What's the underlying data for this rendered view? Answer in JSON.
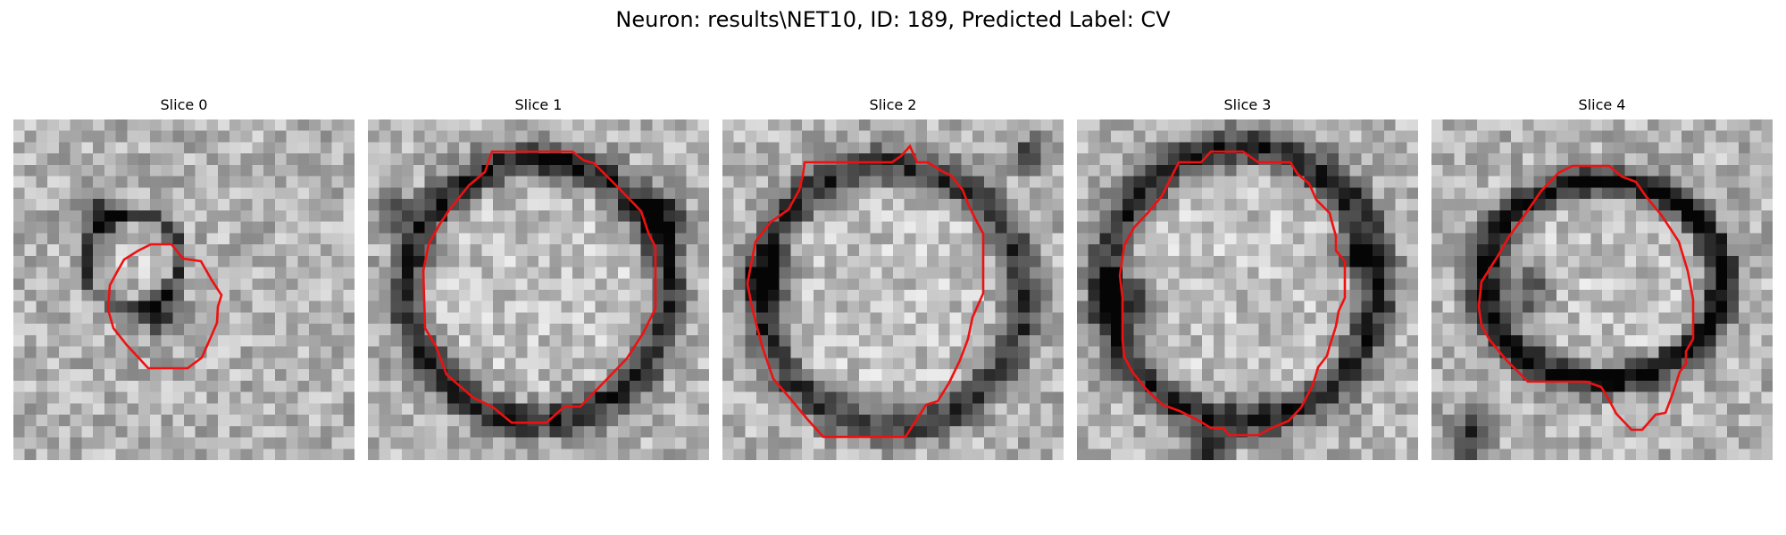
{
  "figure": {
    "suptitle": "Neuron: results\\NET10, ID: 189, Predicted Label: CV",
    "contour_color": "#ee1111",
    "colormap": "gray"
  },
  "panels": [
    {
      "title": "Slice 0",
      "contour_icon": "roi-contour"
    },
    {
      "title": "Slice 1",
      "contour_icon": "roi-contour"
    },
    {
      "title": "Slice 2",
      "contour_icon": "roi-contour"
    },
    {
      "title": "Slice 3",
      "contour_icon": "roi-contour"
    },
    {
      "title": "Slice 4",
      "contour_icon": "roi-contour"
    }
  ]
}
